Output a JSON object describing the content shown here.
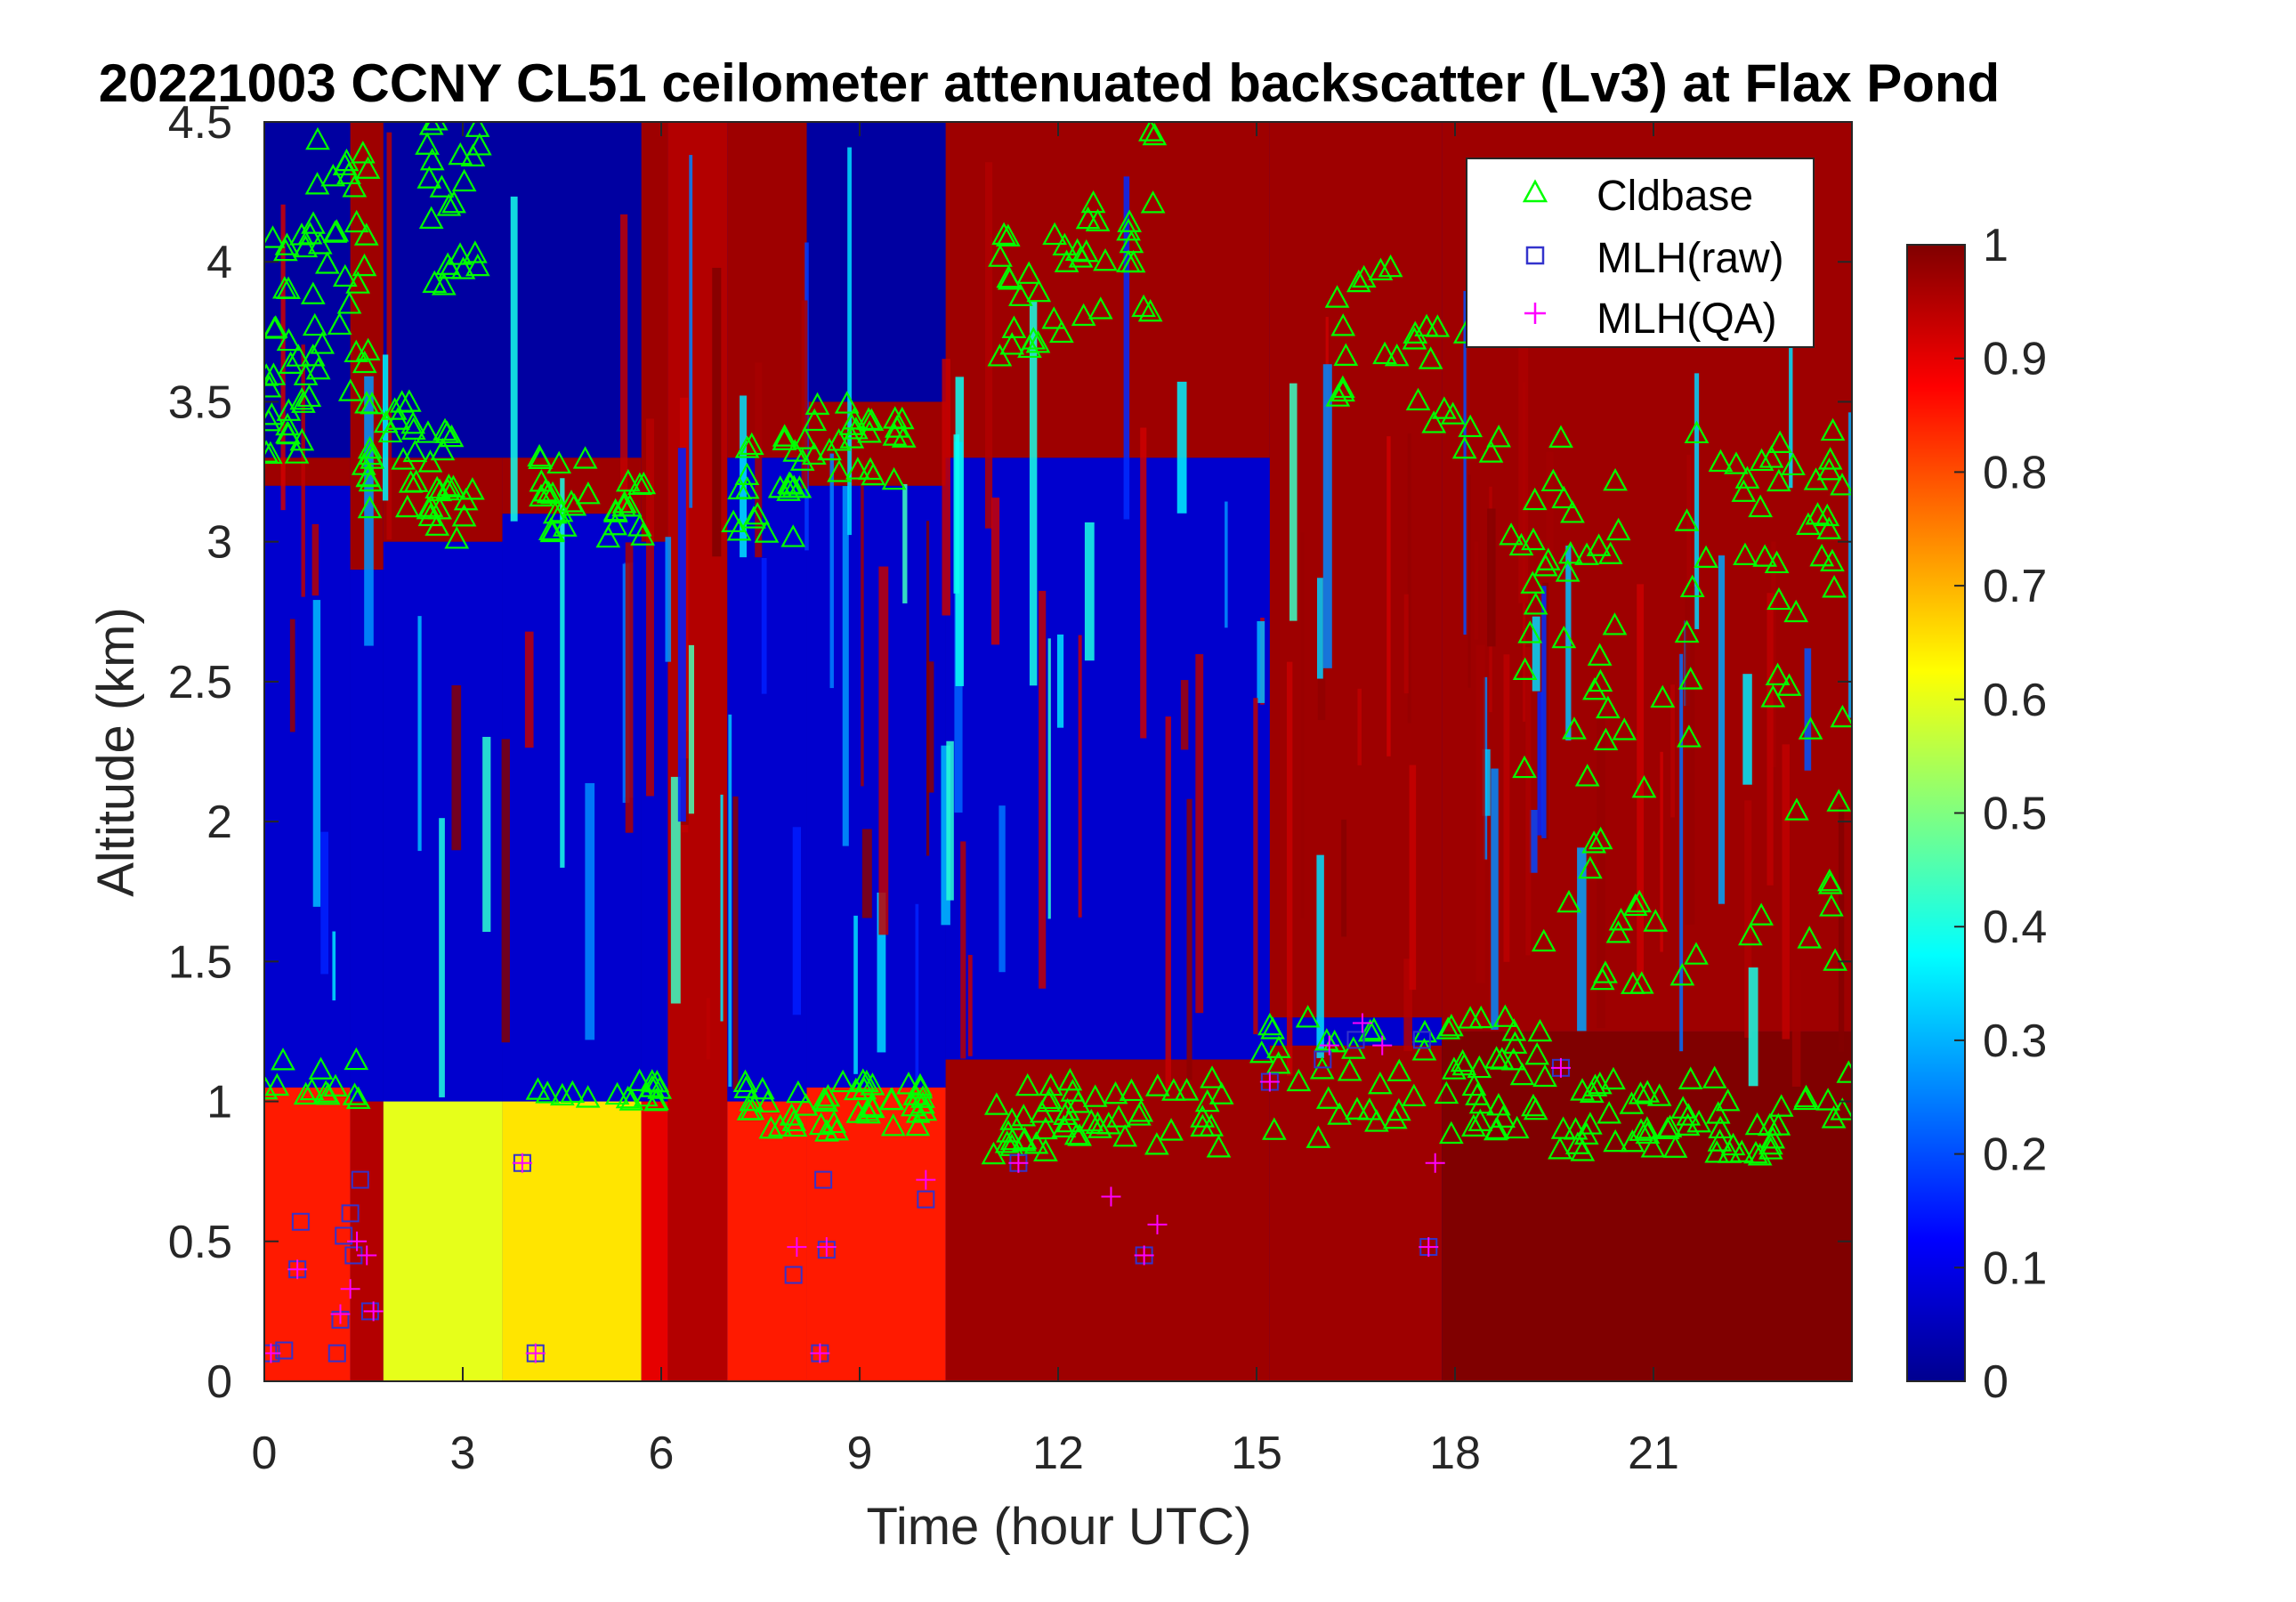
{
  "chart_data": {
    "type": "heatmap",
    "title": "20221003 CCNY CL51 ceilometer attenuated backscatter (Lv3) at Flax Pond",
    "xlabel": "Time (hour UTC)",
    "ylabel": "Altitude (km)",
    "xlim": [
      0,
      24
    ],
    "ylim": [
      0,
      4.5
    ],
    "xticks": [
      0,
      3,
      6,
      9,
      12,
      15,
      18,
      21
    ],
    "xtick_labels": [
      "0",
      "3",
      "6",
      "9",
      "12",
      "15",
      "18",
      "21"
    ],
    "yticks": [
      0,
      0.5,
      1,
      1.5,
      2,
      2.5,
      3,
      3.5,
      4,
      4.5
    ],
    "ytick_labels": [
      "0",
      "0.5",
      "1",
      "1.5",
      "2",
      "2.5",
      "3",
      "3.5",
      "4",
      "4.5"
    ],
    "colorbar": {
      "colormap": "jet",
      "range": [
        0,
        1
      ],
      "ticks": [
        0,
        0.1,
        0.2,
        0.3,
        0.4,
        0.5,
        0.6,
        0.7,
        0.8,
        0.9,
        1
      ],
      "tick_labels": [
        "0",
        "0.1",
        "0.2",
        "0.3",
        "0.4",
        "0.5",
        "0.6",
        "0.7",
        "0.8",
        "0.9",
        "1"
      ]
    },
    "legend": {
      "position": "top-right",
      "entries": [
        {
          "label": "Cldbase",
          "marker": "triangle",
          "color": "#00ff00"
        },
        {
          "label": "MLH(raw)",
          "marker": "square",
          "color": "#3333cc"
        },
        {
          "label": "MLH(QA)",
          "marker": "plus",
          "color": "#ff00ff"
        }
      ]
    },
    "field_bands": [
      {
        "t0": 0,
        "t1": 1.3,
        "low": 0.85,
        "lowtop": 1.05,
        "blue_top": 3.2,
        "red_top": 3.3
      },
      {
        "t0": 1.3,
        "t1": 1.8,
        "low": 0.95,
        "lowtop": 1.0,
        "blue_top": 2.9,
        "red_top": 4.5
      },
      {
        "t0": 1.8,
        "t1": 3.6,
        "low": 0.6,
        "lowtop": 1.0,
        "blue_top": 3.0,
        "red_top": 3.3
      },
      {
        "t0": 3.6,
        "t1": 5.7,
        "low": 0.65,
        "lowtop": 1.0,
        "blue_top": 3.1,
        "red_top": 3.3
      },
      {
        "t0": 5.7,
        "t1": 6.1,
        "low": 0.9,
        "lowtop": 1.0,
        "blue_top": 3.0,
        "red_top": 4.5
      },
      {
        "t0": 6.1,
        "t1": 7.0,
        "low": 0.95,
        "lowtop": 4.5,
        "blue_top": 3.1,
        "red_top": 4.5
      },
      {
        "t0": 7.0,
        "t1": 8.2,
        "low": 0.85,
        "lowtop": 1.0,
        "blue_top": 3.3,
        "red_top": 4.5
      },
      {
        "t0": 8.2,
        "t1": 10.3,
        "low": 0.85,
        "lowtop": 1.05,
        "blue_top": 3.2,
        "red_top": 3.5
      },
      {
        "t0": 10.3,
        "t1": 15.2,
        "low": 0.97,
        "lowtop": 1.15,
        "blue_top": 3.3,
        "red_top": 4.5
      },
      {
        "t0": 15.2,
        "t1": 17.8,
        "low": 0.97,
        "lowtop": 1.2,
        "blue_top": 1.3,
        "red_top": 4.5
      },
      {
        "t0": 17.8,
        "t1": 24,
        "low": 1.0,
        "lowtop": 1.25,
        "blue_top": 1.25,
        "red_top": 4.5
      }
    ],
    "cldbase_clusters": [
      {
        "t0": 0.0,
        "t1": 0.7,
        "h0": 3.3,
        "h1": 4.1,
        "n": 30
      },
      {
        "t0": 0.7,
        "t1": 1.6,
        "h0": 3.5,
        "h1": 4.5,
        "n": 30
      },
      {
        "t0": 1.5,
        "t1": 2.6,
        "h0": 3.1,
        "h1": 3.5,
        "n": 25
      },
      {
        "t0": 2.4,
        "t1": 3.3,
        "h0": 3.9,
        "h1": 4.5,
        "n": 22
      },
      {
        "t0": 2.5,
        "t1": 3.2,
        "h0": 3.0,
        "h1": 3.4,
        "n": 18
      },
      {
        "t0": 4.0,
        "t1": 5.8,
        "h0": 3.0,
        "h1": 3.3,
        "n": 30
      },
      {
        "t0": 7.0,
        "t1": 8.1,
        "h0": 3.0,
        "h1": 3.4,
        "n": 20
      },
      {
        "t0": 8.1,
        "t1": 9.9,
        "h0": 3.2,
        "h1": 3.5,
        "n": 25
      },
      {
        "t0": 11.0,
        "t1": 12.5,
        "h0": 3.6,
        "h1": 4.1,
        "n": 20
      },
      {
        "t0": 12.3,
        "t1": 13.5,
        "h0": 3.8,
        "h1": 4.5,
        "n": 18
      },
      {
        "t0": 16.0,
        "t1": 18.5,
        "h0": 3.3,
        "h1": 4.0,
        "n": 25
      },
      {
        "t0": 18.5,
        "t1": 24.0,
        "h0": 2.9,
        "h1": 3.4,
        "n": 45
      },
      {
        "t0": 19.0,
        "t1": 24.0,
        "h0": 1.4,
        "h1": 2.9,
        "n": 55
      },
      {
        "t0": 0.0,
        "t1": 1.6,
        "h0": 1.0,
        "h1": 1.15,
        "n": 12
      },
      {
        "t0": 4.0,
        "t1": 6.0,
        "h0": 0.98,
        "h1": 1.08,
        "n": 16
      },
      {
        "t0": 7.2,
        "t1": 10.0,
        "h0": 0.88,
        "h1": 1.08,
        "n": 45
      },
      {
        "t0": 11.0,
        "t1": 14.5,
        "h0": 0.8,
        "h1": 1.08,
        "n": 50
      },
      {
        "t0": 15.0,
        "t1": 19.5,
        "h0": 0.85,
        "h1": 1.3,
        "n": 60
      },
      {
        "t0": 19.5,
        "t1": 24.0,
        "h0": 0.8,
        "h1": 1.1,
        "n": 55
      }
    ],
    "mlh_raw": [
      {
        "t": 0.1,
        "h": 0.1
      },
      {
        "t": 0.3,
        "h": 0.11
      },
      {
        "t": 0.5,
        "h": 0.4
      },
      {
        "t": 0.55,
        "h": 0.57
      },
      {
        "t": 1.1,
        "h": 0.1
      },
      {
        "t": 1.15,
        "h": 0.22
      },
      {
        "t": 1.2,
        "h": 0.52
      },
      {
        "t": 1.3,
        "h": 0.6
      },
      {
        "t": 1.35,
        "h": 0.45
      },
      {
        "t": 1.45,
        "h": 0.72
      },
      {
        "t": 1.6,
        "h": 0.25
      },
      {
        "t": 3.9,
        "h": 0.78
      },
      {
        "t": 4.1,
        "h": 0.1
      },
      {
        "t": 8.0,
        "h": 0.38
      },
      {
        "t": 8.4,
        "h": 0.1
      },
      {
        "t": 8.45,
        "h": 0.72
      },
      {
        "t": 8.5,
        "h": 0.47
      },
      {
        "t": 10.0,
        "h": 0.65
      },
      {
        "t": 11.4,
        "h": 0.78
      },
      {
        "t": 13.3,
        "h": 0.45
      },
      {
        "t": 15.2,
        "h": 1.07
      },
      {
        "t": 16.0,
        "h": 1.15
      },
      {
        "t": 16.5,
        "h": 1.22
      },
      {
        "t": 17.5,
        "h": 1.22
      },
      {
        "t": 17.6,
        "h": 0.48
      },
      {
        "t": 19.6,
        "h": 1.12
      }
    ],
    "mlh_qa": [
      {
        "t": 0.1,
        "h": 0.1
      },
      {
        "t": 0.5,
        "h": 0.4
      },
      {
        "t": 1.15,
        "h": 0.24
      },
      {
        "t": 1.3,
        "h": 0.33
      },
      {
        "t": 1.4,
        "h": 0.5
      },
      {
        "t": 1.55,
        "h": 0.45
      },
      {
        "t": 1.65,
        "h": 0.25
      },
      {
        "t": 3.9,
        "h": 0.78
      },
      {
        "t": 4.1,
        "h": 0.1
      },
      {
        "t": 8.05,
        "h": 0.48
      },
      {
        "t": 8.4,
        "h": 0.1
      },
      {
        "t": 8.5,
        "h": 0.48
      },
      {
        "t": 10.0,
        "h": 0.72
      },
      {
        "t": 11.4,
        "h": 0.78
      },
      {
        "t": 12.8,
        "h": 0.66
      },
      {
        "t": 13.3,
        "h": 0.45
      },
      {
        "t": 13.5,
        "h": 0.56
      },
      {
        "t": 15.2,
        "h": 1.07
      },
      {
        "t": 16.1,
        "h": 1.2
      },
      {
        "t": 16.6,
        "h": 1.28
      },
      {
        "t": 16.9,
        "h": 1.2
      },
      {
        "t": 17.6,
        "h": 0.48
      },
      {
        "t": 17.7,
        "h": 0.78
      },
      {
        "t": 19.6,
        "h": 1.12
      }
    ]
  }
}
